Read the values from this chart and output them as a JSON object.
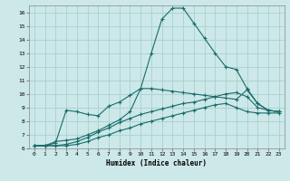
{
  "xlabel": "Humidex (Indice chaleur)",
  "ylabel": "",
  "background_color": "#cce8e8",
  "grid_color": "#aad0d0",
  "line_color": "#1a6b6b",
  "xlim": [
    -0.5,
    23.5
  ],
  "ylim": [
    6,
    16.5
  ],
  "yticks": [
    6,
    7,
    8,
    9,
    10,
    11,
    12,
    13,
    14,
    15,
    16
  ],
  "xticks": [
    0,
    1,
    2,
    3,
    4,
    5,
    6,
    7,
    8,
    9,
    10,
    11,
    12,
    13,
    14,
    15,
    16,
    17,
    18,
    19,
    20,
    21,
    22,
    23
  ],
  "series": [
    {
      "x": [
        0,
        1,
        2,
        3,
        4,
        5,
        6,
        7,
        8,
        9,
        10,
        11,
        12,
        13,
        14,
        15,
        16,
        17,
        18,
        19,
        20,
        21,
        22,
        23
      ],
      "y": [
        6.2,
        6.2,
        6.5,
        6.6,
        6.7,
        7.0,
        7.3,
        7.7,
        8.1,
        8.7,
        10.4,
        13.0,
        15.5,
        16.3,
        16.3,
        15.2,
        14.1,
        13.0,
        12.0,
        11.8,
        10.4,
        9.3,
        8.8,
        8.7
      ]
    },
    {
      "x": [
        0,
        1,
        2,
        3,
        4,
        5,
        6,
        7,
        8,
        9,
        10,
        11,
        12,
        13,
        14,
        15,
        16,
        17,
        18,
        19,
        20,
        21,
        22,
        23
      ],
      "y": [
        6.2,
        6.2,
        6.4,
        8.8,
        8.7,
        8.5,
        8.4,
        9.1,
        9.4,
        9.9,
        10.4,
        10.4,
        10.3,
        10.2,
        10.1,
        10.0,
        9.9,
        9.8,
        9.7,
        9.6,
        10.3,
        9.3,
        8.8,
        8.7
      ]
    },
    {
      "x": [
        0,
        1,
        2,
        3,
        4,
        5,
        6,
        7,
        8,
        9,
        10,
        11,
        12,
        13,
        14,
        15,
        16,
        17,
        18,
        19,
        20,
        21,
        22,
        23
      ],
      "y": [
        6.2,
        6.2,
        6.2,
        6.3,
        6.5,
        6.8,
        7.2,
        7.5,
        7.9,
        8.2,
        8.5,
        8.7,
        8.9,
        9.1,
        9.3,
        9.4,
        9.6,
        9.8,
        10.0,
        10.1,
        9.8,
        9.0,
        8.8,
        8.7
      ]
    },
    {
      "x": [
        0,
        1,
        2,
        3,
        4,
        5,
        6,
        7,
        8,
        9,
        10,
        11,
        12,
        13,
        14,
        15,
        16,
        17,
        18,
        19,
        20,
        21,
        22,
        23
      ],
      "y": [
        6.2,
        6.2,
        6.2,
        6.2,
        6.3,
        6.5,
        6.8,
        7.0,
        7.3,
        7.5,
        7.8,
        8.0,
        8.2,
        8.4,
        8.6,
        8.8,
        9.0,
        9.2,
        9.3,
        9.0,
        8.7,
        8.6,
        8.6,
        8.6
      ]
    }
  ]
}
